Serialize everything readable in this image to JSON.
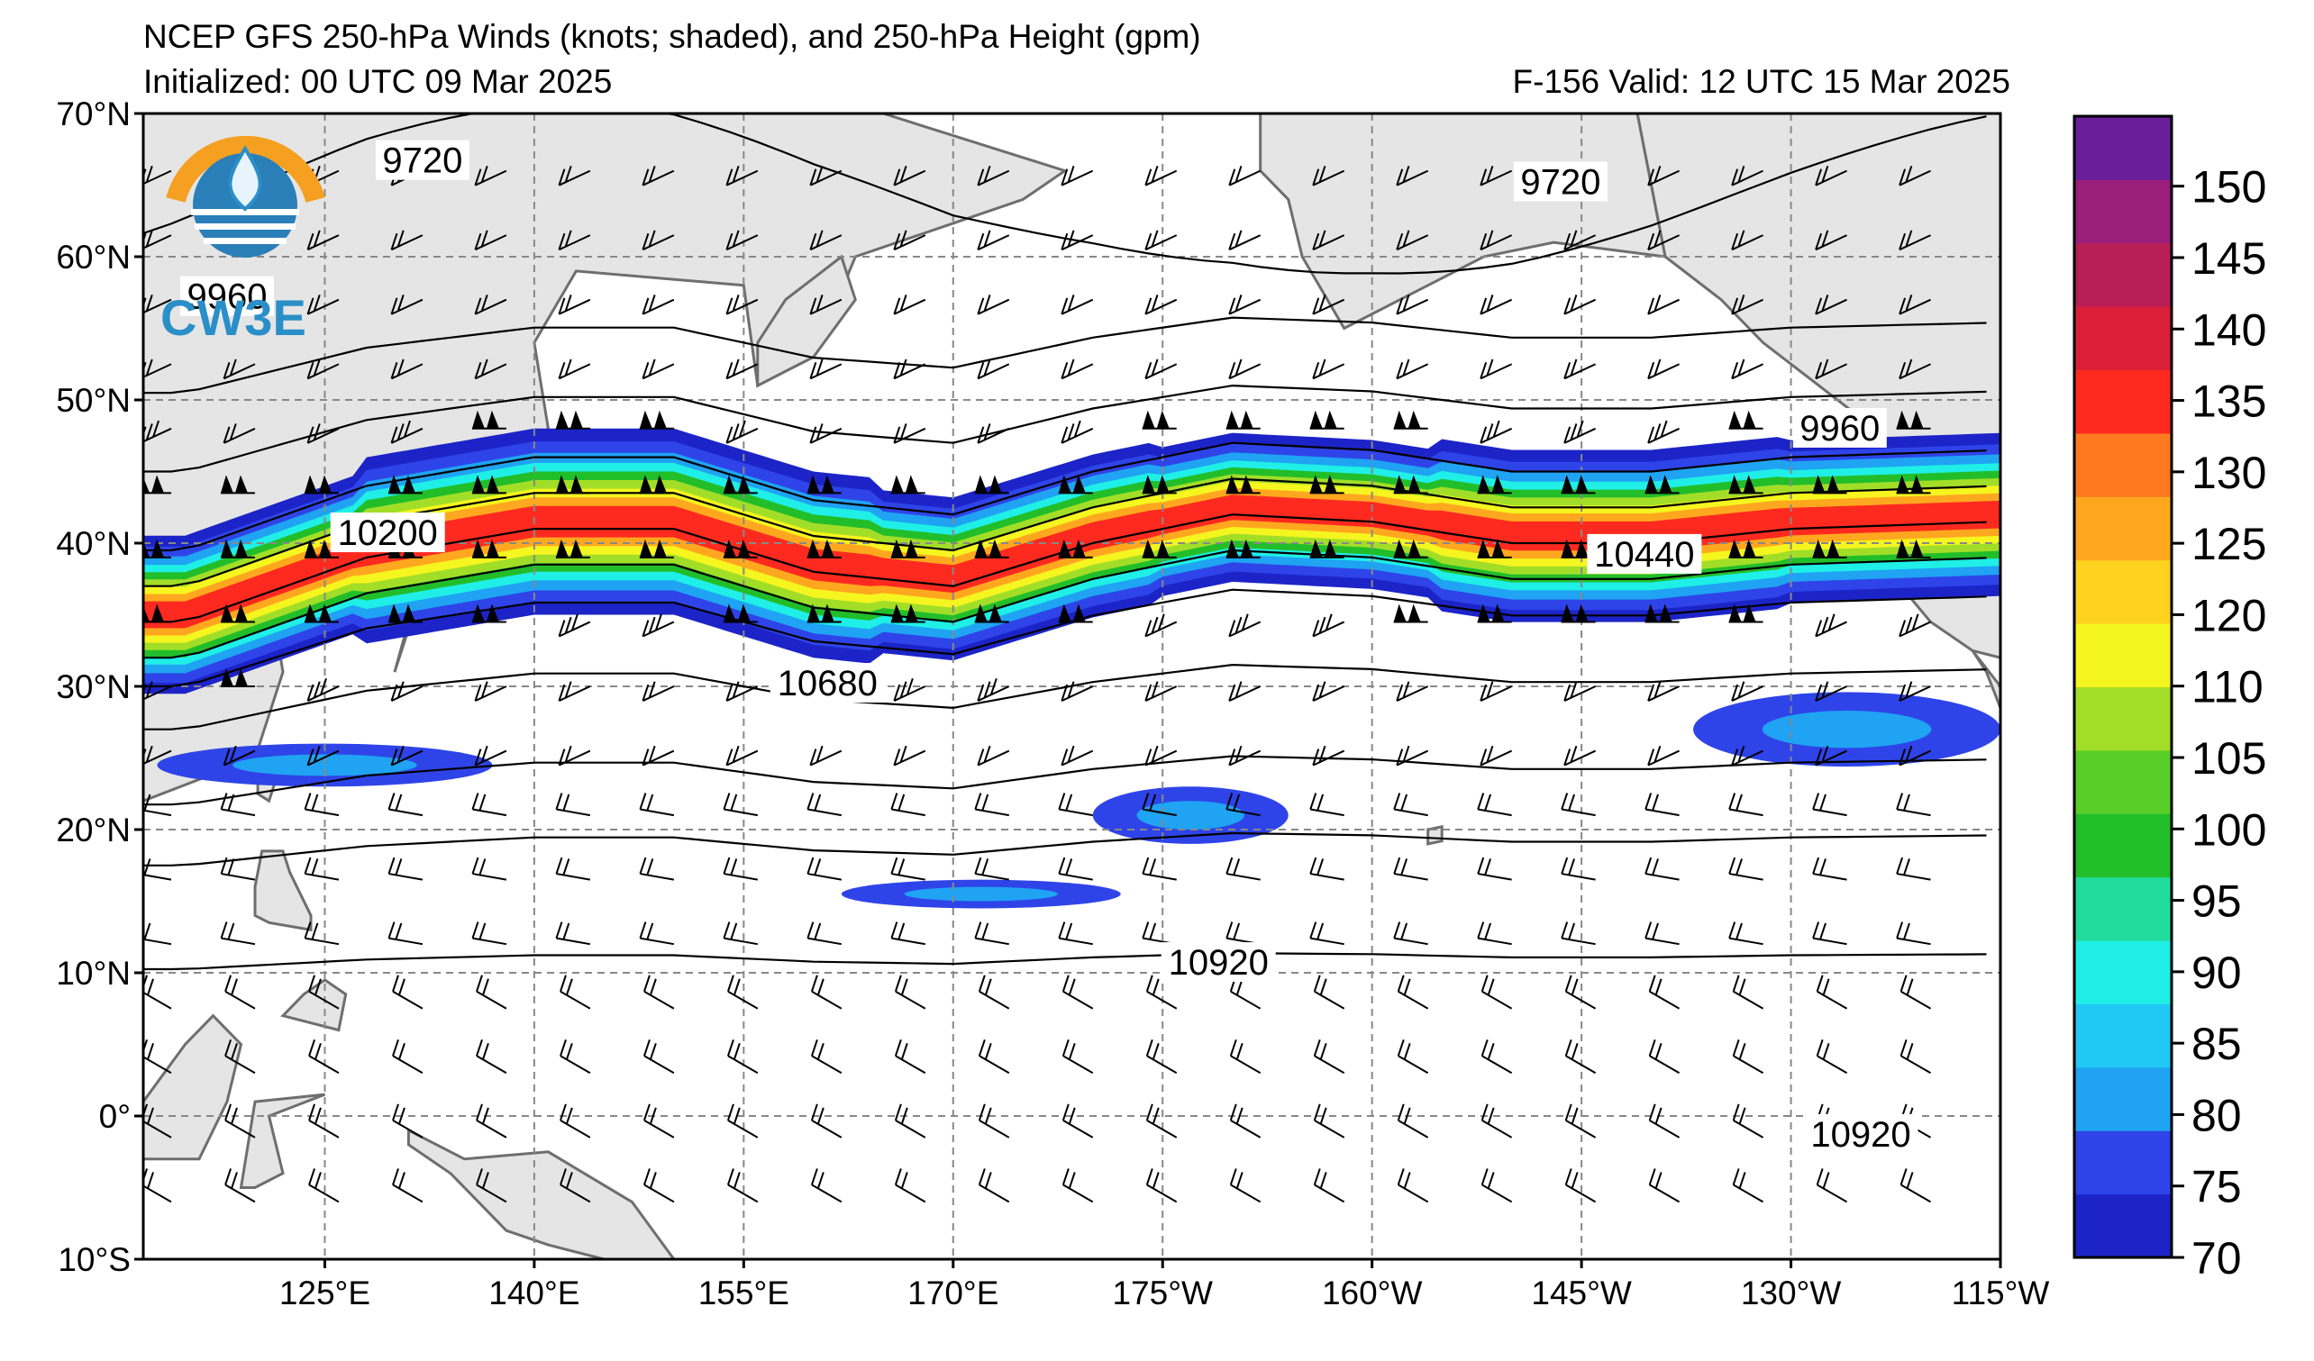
{
  "header": {
    "title": "NCEP GFS 250-hPa Winds (knots; shaded), and 250-hPa Height (gpm)",
    "initialized": "Initialized: 00 UTC 09 Mar 2025",
    "valid": "F-156  Valid: 12 UTC 15 Mar 2025"
  },
  "logo": {
    "text": "CW3E",
    "colors": {
      "sun": "#f5a020",
      "drop": "#2a8fc8",
      "water": "#2a7fb8"
    }
  },
  "map": {
    "lat_labels": [
      "70°N",
      "60°N",
      "50°N",
      "40°N",
      "30°N",
      "20°N",
      "10°N",
      "0°",
      "10°S"
    ],
    "lon_labels": [
      "125°E",
      "140°E",
      "155°E",
      "170°E",
      "175°W",
      "160°W",
      "145°W",
      "130°W",
      "115°W"
    ],
    "contour_labels": [
      {
        "text": "9720",
        "lon": 132,
        "lat": 66.5
      },
      {
        "text": "9720",
        "lon": -146.5,
        "lat": 65
      },
      {
        "text": "9960",
        "lon": 118,
        "lat": 57
      },
      {
        "text": "9960",
        "lon": -126.5,
        "lat": 47.8
      },
      {
        "text": "10200",
        "lon": 129.5,
        "lat": 40.5
      },
      {
        "text": "10440",
        "lon": -140.5,
        "lat": 39
      },
      {
        "text": "10680",
        "lon": 161,
        "lat": 30
      },
      {
        "text": "10920",
        "lon": -171,
        "lat": 10.5
      },
      {
        "text": "10920",
        "lon": -125,
        "lat": -1.5
      }
    ]
  },
  "colorbar": {
    "ticks": [
      "70",
      "75",
      "80",
      "85",
      "90",
      "95",
      "100",
      "105",
      "110",
      "120",
      "125",
      "130",
      "135",
      "140",
      "145",
      "150"
    ],
    "colors": [
      "#1c24c8",
      "#2e44e8",
      "#1fa3f2",
      "#22c8f5",
      "#1fefe6",
      "#22dc9e",
      "#22be2a",
      "#5ace28",
      "#a2de28",
      "#f5f51f",
      "#ffd21f",
      "#ffa81f",
      "#ff7a1f",
      "#ff2a1f",
      "#dc1f38",
      "#b81f55",
      "#9a1f7a",
      "#6a1f9a"
    ]
  },
  "jet": {
    "axis": [
      {
        "lon": 115,
        "lat": 35
      },
      {
        "lon": 128,
        "lat": 39.5
      },
      {
        "lon": 140,
        "lat": 41.5
      },
      {
        "lon": 150,
        "lat": 41.5
      },
      {
        "lon": 160,
        "lat": 38.5
      },
      {
        "lon": 170,
        "lat": 37.5
      },
      {
        "lon": 180,
        "lat": 40.5
      },
      {
        "lon": -170,
        "lat": 42.5
      },
      {
        "lon": -160,
        "lat": 42
      },
      {
        "lon": -150,
        "lat": 40.5
      },
      {
        "lon": -140,
        "lat": 40.5
      },
      {
        "lon": -130,
        "lat": 41.5
      },
      {
        "lon": -115,
        "lat": 42
      }
    ],
    "core_max_kt": 145
  }
}
